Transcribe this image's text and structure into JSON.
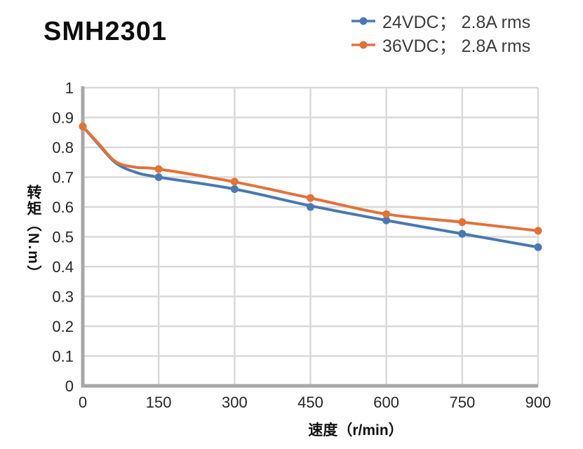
{
  "title": "SMH2301",
  "legend": {
    "items": [
      {
        "label": "24VDC； 2.8A rms",
        "color": "#4a78b2"
      },
      {
        "label": "36VDC； 2.8A rms",
        "color": "#e2723a"
      }
    ]
  },
  "chart_data": {
    "type": "line",
    "title": "SMH2301",
    "xlabel": "速度（r/min）",
    "ylabel": "转矩（N.m）",
    "xlim": [
      0,
      900
    ],
    "ylim": [
      0,
      1
    ],
    "xticks": [
      0,
      150,
      300,
      450,
      600,
      750,
      900
    ],
    "yticks": [
      0,
      0.1,
      0.2,
      0.3,
      0.4,
      0.5,
      0.6,
      0.7,
      0.8,
      0.9,
      1
    ],
    "grid": true,
    "legend_position": "top-right",
    "categories": [
      0,
      150,
      300,
      450,
      600,
      750,
      900
    ],
    "series": [
      {
        "name": "24VDC； 2.8A rms",
        "color": "#4a78b2",
        "values": [
          0.87,
          0.7,
          0.66,
          0.6,
          0.555,
          0.51,
          0.465
        ],
        "curve_points": [
          [
            0,
            0.87
          ],
          [
            30,
            0.812
          ],
          [
            65,
            0.748
          ],
          [
            105,
            0.716
          ],
          [
            150,
            0.7
          ],
          [
            300,
            0.66
          ],
          [
            450,
            0.604
          ],
          [
            600,
            0.555
          ],
          [
            750,
            0.51
          ],
          [
            900,
            0.465
          ]
        ]
      },
      {
        "name": "36VDC； 2.8A rms",
        "color": "#e2723a",
        "values": [
          0.87,
          0.727,
          0.685,
          0.63,
          0.576,
          0.549,
          0.52
        ],
        "curve_points": [
          [
            0,
            0.87
          ],
          [
            30,
            0.815
          ],
          [
            65,
            0.752
          ],
          [
            105,
            0.733
          ],
          [
            150,
            0.727
          ],
          [
            300,
            0.684
          ],
          [
            450,
            0.63
          ],
          [
            600,
            0.576
          ],
          [
            750,
            0.549
          ],
          [
            900,
            0.52
          ]
        ]
      }
    ],
    "styles": {
      "grid_color": "#d9d9d9",
      "axis_color": "#a6a6a6",
      "tick_color": "#262626"
    }
  }
}
